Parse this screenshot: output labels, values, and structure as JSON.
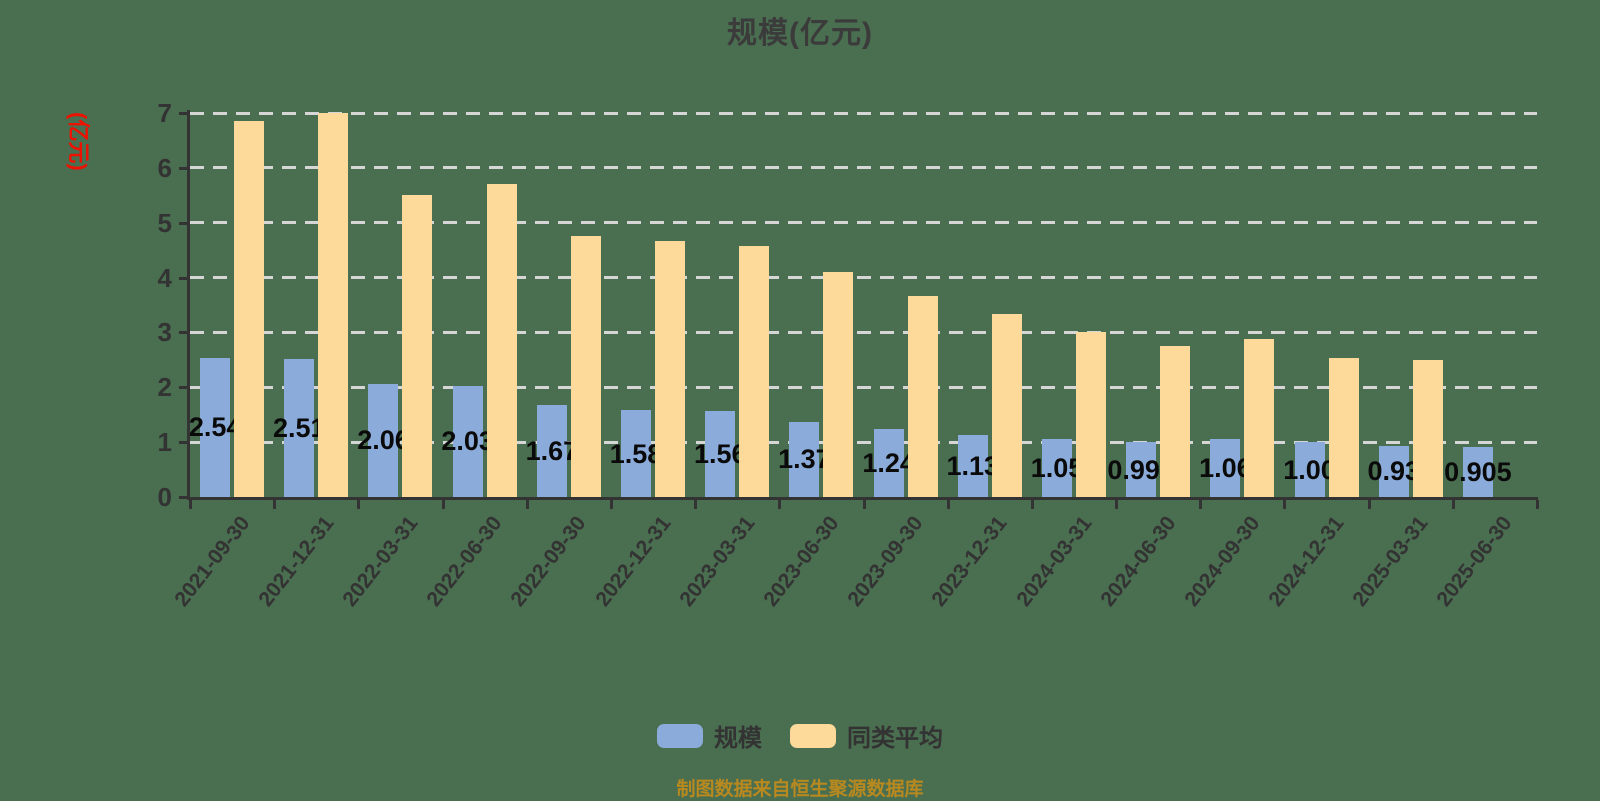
{
  "title": "规模(亿元)",
  "y_axis": {
    "name": "(亿元)",
    "ticks": [
      "0",
      "1",
      "2",
      "3",
      "4",
      "5",
      "6",
      "7"
    ],
    "min": 0,
    "max": 7
  },
  "legend": [
    {
      "label": "规模",
      "color": "#8BACDB"
    },
    {
      "label": "同类平均",
      "color": "#FDD99A"
    }
  ],
  "footer": "制图数据来自恒生聚源数据库",
  "colors": {
    "background": "#4A6E50",
    "scale_bar": "#8BACDB",
    "peer_bar": "#FDD99A",
    "axis": "#333333",
    "grid": "#D6D6D6",
    "title": "#3B3B3B",
    "tick_text": "#333333",
    "bar_label": "#0A0A0A",
    "y_name": "#EE1100",
    "footer": "#B8891F"
  },
  "chart_data": {
    "type": "bar",
    "title": "规模(亿元)",
    "ylabel": "(亿元)",
    "ylim": [
      0,
      7
    ],
    "grid": "horizontal-dashed",
    "legend_position": "bottom",
    "categories": [
      "2021-09-30",
      "2021-12-31",
      "2022-03-31",
      "2022-06-30",
      "2022-09-30",
      "2022-12-31",
      "2023-03-31",
      "2023-06-30",
      "2023-09-30",
      "2023-12-31",
      "2024-03-31",
      "2024-06-30",
      "2024-09-30",
      "2024-12-31",
      "2025-03-31",
      "2025-06-30"
    ],
    "series": [
      {
        "name": "规模",
        "color": "#8BACDB",
        "values": [
          2.54,
          2.51,
          2.06,
          2.03,
          1.67,
          1.58,
          1.56,
          1.37,
          1.24,
          1.13,
          1.05,
          0.998,
          1.06,
          1.0,
          0.93,
          0.905
        ],
        "labels": [
          "2.54",
          "2.51",
          "2.06",
          "2.03",
          "1.67",
          "1.58",
          "1.56",
          "1.37",
          "1.24",
          "1.13",
          "1.05",
          "0.998",
          "1.06",
          "1.00",
          "0.93",
          "0.905"
        ]
      },
      {
        "name": "同类平均",
        "color": "#FDD99A",
        "values": [
          6.85,
          7.0,
          5.5,
          5.7,
          4.75,
          4.67,
          4.58,
          4.1,
          3.67,
          3.34,
          3.0,
          2.76,
          2.88,
          2.53,
          2.5,
          null
        ],
        "labels": null
      }
    ]
  }
}
